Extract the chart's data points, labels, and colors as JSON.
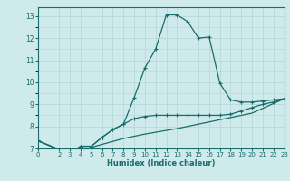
{
  "xlabel": "Humidex (Indice chaleur)",
  "background_color": "#ceeaea",
  "grid_color": "#b8d8d8",
  "line_color": "#1a6b6b",
  "xlim": [
    0,
    23
  ],
  "ylim": [
    7,
    13.4
  ],
  "yticks": [
    7,
    8,
    9,
    10,
    11,
    12,
    13
  ],
  "xticks": [
    0,
    2,
    3,
    4,
    5,
    6,
    7,
    8,
    9,
    10,
    11,
    12,
    13,
    14,
    15,
    16,
    17,
    18,
    19,
    20,
    21,
    22,
    23
  ],
  "curve1_x": [
    0,
    3,
    4,
    5,
    6,
    7,
    8,
    9,
    10,
    11,
    12,
    13,
    14,
    15,
    16,
    17,
    18,
    19,
    20,
    21,
    22,
    23
  ],
  "curve1_y": [
    7.35,
    6.75,
    7.1,
    7.1,
    7.5,
    7.85,
    8.1,
    9.3,
    10.65,
    11.5,
    13.05,
    13.05,
    12.75,
    12.0,
    12.05,
    9.95,
    9.2,
    9.1,
    9.1,
    9.15,
    9.2,
    9.25
  ],
  "curve2_x": [
    0,
    3,
    4,
    5,
    6,
    7,
    8,
    9,
    10,
    11,
    12,
    13,
    14,
    15,
    16,
    17,
    18,
    19,
    20,
    21,
    22,
    23
  ],
  "curve2_y": [
    7.35,
    6.75,
    7.1,
    7.1,
    7.5,
    7.85,
    8.1,
    8.35,
    8.45,
    8.5,
    8.5,
    8.5,
    8.5,
    8.5,
    8.5,
    8.5,
    8.55,
    8.7,
    8.85,
    9.0,
    9.1,
    9.25
  ],
  "curve3_x": [
    0,
    3,
    5,
    8,
    10,
    13,
    15,
    18,
    20,
    23
  ],
  "curve3_y": [
    7.35,
    6.75,
    7.05,
    7.45,
    7.65,
    7.9,
    8.1,
    8.4,
    8.6,
    9.25
  ]
}
